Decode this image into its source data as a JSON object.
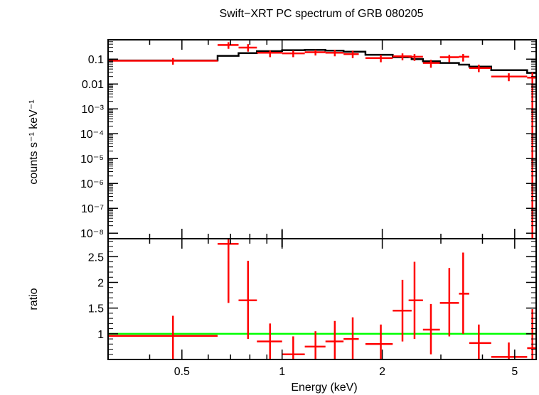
{
  "chart_data": [
    {
      "type": "scatter",
      "title": "Swift−XRT PC spectrum of GRB 080205",
      "xlabel": "Energy (keV)",
      "ylabel": "counts s⁻¹ keV⁻¹",
      "xscale": "log",
      "yscale": "log",
      "xlim": [
        0.3,
        5.8
      ],
      "ylim": [
        6e-09,
        0.6
      ],
      "yticks": [
        {
          "value": 0.1,
          "label": "0.1"
        },
        {
          "value": 0.01,
          "label": "0.01"
        },
        {
          "value": 0.001,
          "label": "10⁻³"
        },
        {
          "value": 0.0001,
          "label": "10⁻⁴"
        },
        {
          "value": 1e-05,
          "label": "10⁻⁵"
        },
        {
          "value": 1e-06,
          "label": "10⁻⁶"
        },
        {
          "value": 1e-07,
          "label": "10⁻⁷"
        },
        {
          "value": 1e-08,
          "label": "10⁻⁸"
        }
      ],
      "data_color": "#ff0000",
      "model_color": "#000000",
      "data": [
        {
          "x": 0.47,
          "xlo": 0.3,
          "xhi": 0.64,
          "y": 0.086,
          "ylo": 0.06,
          "yhi": 0.11
        },
        {
          "x": 0.69,
          "xlo": 0.64,
          "xhi": 0.74,
          "y": 0.37,
          "ylo": 0.26,
          "yhi": 0.48
        },
        {
          "x": 0.79,
          "xlo": 0.74,
          "xhi": 0.84,
          "y": 0.29,
          "ylo": 0.2,
          "yhi": 0.4
        },
        {
          "x": 0.92,
          "xlo": 0.84,
          "xhi": 1.0,
          "y": 0.18,
          "ylo": 0.12,
          "yhi": 0.22
        },
        {
          "x": 1.08,
          "xlo": 1.0,
          "xhi": 1.17,
          "y": 0.17,
          "ylo": 0.12,
          "yhi": 0.22
        },
        {
          "x": 1.26,
          "xlo": 1.17,
          "xhi": 1.35,
          "y": 0.19,
          "ylo": 0.14,
          "yhi": 0.24
        },
        {
          "x": 1.44,
          "xlo": 1.35,
          "xhi": 1.53,
          "y": 0.18,
          "ylo": 0.13,
          "yhi": 0.24
        },
        {
          "x": 1.63,
          "xlo": 1.53,
          "xhi": 1.7,
          "y": 0.16,
          "ylo": 0.11,
          "yhi": 0.22
        },
        {
          "x": 1.98,
          "xlo": 1.78,
          "xhi": 2.15,
          "y": 0.11,
          "ylo": 0.075,
          "yhi": 0.15
        },
        {
          "x": 2.3,
          "xlo": 2.15,
          "xhi": 2.45,
          "y": 0.13,
          "ylo": 0.09,
          "yhi": 0.17
        },
        {
          "x": 2.5,
          "xlo": 2.4,
          "xhi": 2.65,
          "y": 0.125,
          "ylo": 0.085,
          "yhi": 0.16
        },
        {
          "x": 2.8,
          "xlo": 2.65,
          "xhi": 2.98,
          "y": 0.07,
          "ylo": 0.045,
          "yhi": 0.095
        },
        {
          "x": 3.18,
          "xlo": 2.98,
          "xhi": 3.4,
          "y": 0.12,
          "ylo": 0.075,
          "yhi": 0.15
        },
        {
          "x": 3.5,
          "xlo": 3.4,
          "xhi": 3.65,
          "y": 0.125,
          "ylo": 0.08,
          "yhi": 0.16
        },
        {
          "x": 3.9,
          "xlo": 3.65,
          "xhi": 4.25,
          "y": 0.044,
          "ylo": 0.03,
          "yhi": 0.06
        },
        {
          "x": 4.8,
          "xlo": 4.25,
          "xhi": 5.45,
          "y": 0.02,
          "ylo": 0.013,
          "yhi": 0.027
        },
        {
          "x": 5.65,
          "xlo": 5.45,
          "xhi": 5.8,
          "y": 0.018,
          "ylo": 6e-09,
          "yhi": 0.03
        }
      ],
      "model": [
        {
          "x0": 0.3,
          "x1": 0.64,
          "y": 0.088
        },
        {
          "x0": 0.64,
          "x1": 0.74,
          "y": 0.135
        },
        {
          "x0": 0.74,
          "x1": 0.84,
          "y": 0.175
        },
        {
          "x0": 0.84,
          "x1": 1.0,
          "y": 0.21
        },
        {
          "x0": 1.0,
          "x1": 1.17,
          "y": 0.23
        },
        {
          "x0": 1.17,
          "x1": 1.35,
          "y": 0.235
        },
        {
          "x0": 1.35,
          "x1": 1.53,
          "y": 0.22
        },
        {
          "x0": 1.53,
          "x1": 1.78,
          "y": 0.2
        },
        {
          "x0": 1.78,
          "x1": 2.15,
          "y": 0.15
        },
        {
          "x0": 2.15,
          "x1": 2.45,
          "y": 0.12
        },
        {
          "x0": 2.45,
          "x1": 2.65,
          "y": 0.1
        },
        {
          "x0": 2.65,
          "x1": 2.98,
          "y": 0.082
        },
        {
          "x0": 2.98,
          "x1": 3.4,
          "y": 0.07
        },
        {
          "x0": 3.4,
          "x1": 3.65,
          "y": 0.06
        },
        {
          "x0": 3.65,
          "x1": 4.25,
          "y": 0.05
        },
        {
          "x0": 4.25,
          "x1": 5.45,
          "y": 0.036
        },
        {
          "x0": 5.45,
          "x1": 5.8,
          "y": 0.028
        }
      ]
    },
    {
      "type": "scatter",
      "xlabel": "Energy (keV)",
      "ylabel": "ratio",
      "xscale": "log",
      "xlim": [
        0.3,
        5.8
      ],
      "ylim": [
        0.5,
        2.85
      ],
      "yticks": [
        {
          "value": 1,
          "label": "1"
        },
        {
          "value": 1.5,
          "label": "1.5"
        },
        {
          "value": 2,
          "label": "2"
        },
        {
          "value": 2.5,
          "label": "2.5"
        }
      ],
      "xticks": [
        {
          "value": 0.5,
          "label": "0.5"
        },
        {
          "value": 1,
          "label": "1"
        },
        {
          "value": 2,
          "label": "2"
        },
        {
          "value": 5,
          "label": "5"
        }
      ],
      "reference_line": 1.0,
      "reference_color": "#00ff00",
      "data_color": "#ff0000",
      "data": [
        {
          "x": 0.47,
          "xlo": 0.3,
          "xhi": 0.64,
          "y": 0.96,
          "ylo": 0.5,
          "yhi": 1.35
        },
        {
          "x": 0.69,
          "xlo": 0.64,
          "xhi": 0.74,
          "y": 2.75,
          "ylo": 1.6,
          "yhi": 2.85
        },
        {
          "x": 0.79,
          "xlo": 0.74,
          "xhi": 0.84,
          "y": 1.65,
          "ylo": 0.9,
          "yhi": 2.42
        },
        {
          "x": 0.92,
          "xlo": 0.84,
          "xhi": 1.0,
          "y": 0.85,
          "ylo": 0.5,
          "yhi": 1.2
        },
        {
          "x": 1.08,
          "xlo": 1.0,
          "xhi": 1.17,
          "y": 0.6,
          "ylo": 0.5,
          "yhi": 0.95
        },
        {
          "x": 1.26,
          "xlo": 1.17,
          "xhi": 1.35,
          "y": 0.75,
          "ylo": 0.5,
          "yhi": 1.05
        },
        {
          "x": 1.44,
          "xlo": 1.35,
          "xhi": 1.53,
          "y": 0.85,
          "ylo": 0.5,
          "yhi": 1.25
        },
        {
          "x": 1.63,
          "xlo": 1.53,
          "xhi": 1.7,
          "y": 0.9,
          "ylo": 0.5,
          "yhi": 1.32
        },
        {
          "x": 1.98,
          "xlo": 1.78,
          "xhi": 2.15,
          "y": 0.8,
          "ylo": 0.5,
          "yhi": 1.18
        },
        {
          "x": 2.3,
          "xlo": 2.15,
          "xhi": 2.45,
          "y": 1.45,
          "ylo": 0.85,
          "yhi": 2.05
        },
        {
          "x": 2.5,
          "xlo": 2.4,
          "xhi": 2.65,
          "y": 1.65,
          "ylo": 0.9,
          "yhi": 2.4
        },
        {
          "x": 2.8,
          "xlo": 2.65,
          "xhi": 2.98,
          "y": 1.08,
          "ylo": 0.6,
          "yhi": 1.58
        },
        {
          "x": 3.18,
          "xlo": 2.98,
          "xhi": 3.4,
          "y": 1.6,
          "ylo": 0.95,
          "yhi": 2.28
        },
        {
          "x": 3.5,
          "xlo": 3.4,
          "xhi": 3.65,
          "y": 1.78,
          "ylo": 1.0,
          "yhi": 2.58
        },
        {
          "x": 3.9,
          "xlo": 3.65,
          "xhi": 4.25,
          "y": 0.82,
          "ylo": 0.5,
          "yhi": 1.18
        },
        {
          "x": 4.8,
          "xlo": 4.25,
          "xhi": 5.45,
          "y": 0.55,
          "ylo": 0.5,
          "yhi": 0.83
        },
        {
          "x": 5.65,
          "xlo": 5.45,
          "xhi": 5.8,
          "y": 0.72,
          "ylo": 0.5,
          "yhi": 1.48
        }
      ]
    }
  ]
}
